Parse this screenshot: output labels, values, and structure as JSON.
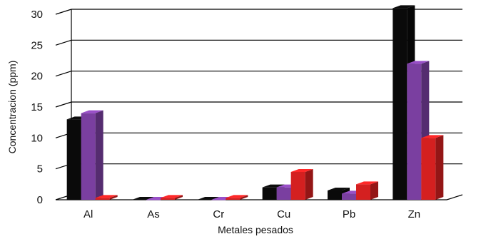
{
  "chart_data": {
    "type": "bar",
    "style": "3d-clustered",
    "title": "",
    "xlabel": "Metales pesados",
    "ylabel": "Concentracion (ppm)",
    "categories": [
      "Al",
      "As",
      "Cr",
      "Cu",
      "Pb",
      "Zn"
    ],
    "ylim": [
      0,
      30
    ],
    "yticks": [
      0,
      5,
      10,
      15,
      20,
      25,
      30
    ],
    "grid": true,
    "legend": "none",
    "series": [
      {
        "color": "#0a0a0a",
        "values": [
          13.0,
          0.0,
          0.0,
          2.0,
          1.5,
          31.0
        ]
      },
      {
        "color": "#7a3fa0",
        "values": [
          14.0,
          0.0,
          0.0,
          2.0,
          1.0,
          22.0
        ]
      },
      {
        "color": "#d42020",
        "values": [
          0.3,
          0.3,
          0.3,
          4.5,
          2.5,
          10.0
        ]
      }
    ]
  }
}
